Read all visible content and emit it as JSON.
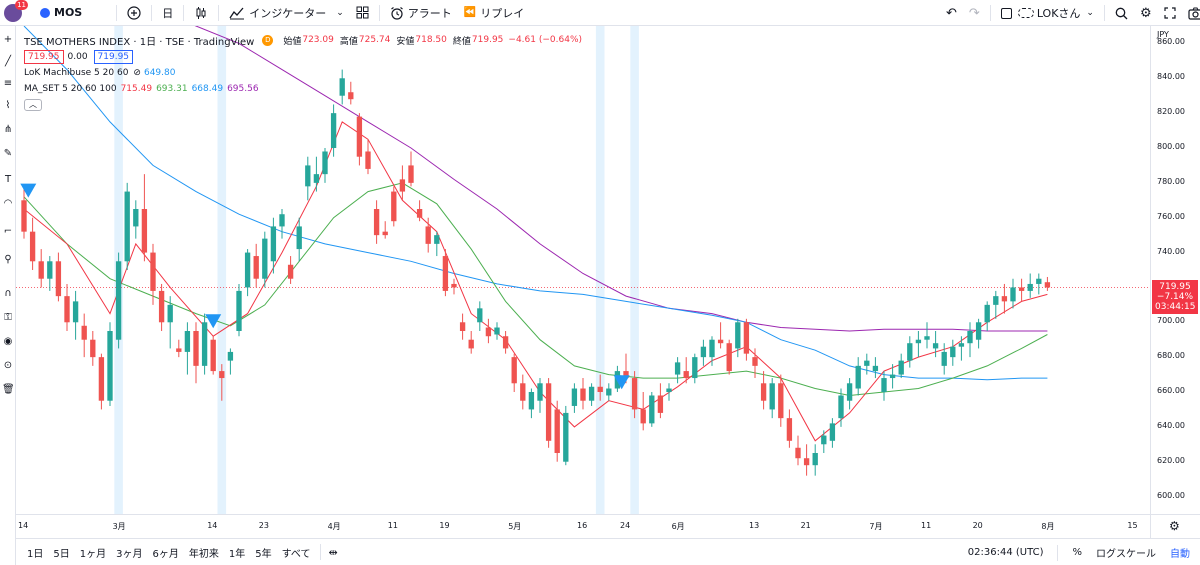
{
  "toolbar": {
    "avatar_badge": "11",
    "symbol": "MOS",
    "interval": "日",
    "indicators_label": "インジケーター",
    "alert_label": "アラート",
    "replay_label": "リプレイ",
    "layout_name": "LOKさん"
  },
  "legend": {
    "title": "TSE MOTHERS INDEX · 1日 · TSE · TradingView",
    "badge": "D",
    "open_label": "始値",
    "open": "723.09",
    "high_label": "高値",
    "high": "725.74",
    "low_label": "安値",
    "low": "718.50",
    "close_label": "終値",
    "close": "719.95",
    "change": "−4.61 (−0.64%)",
    "bid": "719.95",
    "spread": "0.00",
    "ask": "719.95",
    "indicator1_name": "LoK Machibuse 5 20 60",
    "indicator1_val": "649.80",
    "indicator2_name": "MA_SET 5 20 60 100",
    "ma5": "715.49",
    "ma20": "693.31",
    "ma60": "668.49",
    "ma100": "695.56"
  },
  "price_axis": {
    "currency": "JPY",
    "ticks": [
      "860.00",
      "840.00",
      "820.00",
      "800.00",
      "780.00",
      "760.00",
      "740.00",
      "720.00",
      "700.00",
      "680.00",
      "660.00",
      "640.00",
      "620.00",
      "600.00"
    ],
    "current_price": "719.95",
    "current_change": "−7.14%",
    "countdown": "03:44:15"
  },
  "time_axis": {
    "labels": [
      {
        "t": 0,
        "text": "14"
      },
      {
        "t": 11,
        "text": "3月"
      },
      {
        "t": 22,
        "text": "14"
      },
      {
        "t": 28,
        "text": "23"
      },
      {
        "t": 36,
        "text": "4月"
      },
      {
        "t": 43,
        "text": "11"
      },
      {
        "t": 49,
        "text": "19"
      },
      {
        "t": 57,
        "text": "5月"
      },
      {
        "t": 65,
        "text": "16"
      },
      {
        "t": 70,
        "text": "24"
      },
      {
        "t": 76,
        "text": "6月"
      },
      {
        "t": 85,
        "text": "13"
      },
      {
        "t": 91,
        "text": "21"
      },
      {
        "t": 99,
        "text": "7月"
      },
      {
        "t": 105,
        "text": "11"
      },
      {
        "t": 111,
        "text": "20"
      },
      {
        "t": 119,
        "text": "8月"
      },
      {
        "t": 129,
        "text": "15"
      }
    ]
  },
  "bottom_bar": {
    "ranges": [
      "1日",
      "5日",
      "1ヶ月",
      "3ヶ月",
      "6ヶ月",
      "年初来",
      "1年",
      "5年",
      "すべて"
    ],
    "clock": "02:36:44 (UTC)",
    "percent": "%",
    "log_scale": "ログスケール",
    "auto": "自動"
  },
  "colors": {
    "up": "#26a69a",
    "down": "#ef5350",
    "ma5": "#f23645",
    "ma20": "#4caf50",
    "ma60": "#2196f3",
    "ma100": "#9c27b0",
    "highlight": "#e3f2fd",
    "marker": "#2196f3"
  },
  "chart_data": {
    "type": "candlestick",
    "ylim": [
      590,
      870
    ],
    "xlim": [
      0,
      130
    ],
    "candles": [
      [
        0,
        770,
        778,
        748,
        752
      ],
      [
        1,
        752,
        760,
        730,
        735
      ],
      [
        2,
        735,
        742,
        720,
        725
      ],
      [
        3,
        725,
        738,
        718,
        735
      ],
      [
        4,
        735,
        740,
        712,
        715
      ],
      [
        5,
        715,
        722,
        695,
        700
      ],
      [
        6,
        700,
        718,
        690,
        712
      ],
      [
        7,
        698,
        705,
        680,
        690
      ],
      [
        8,
        690,
        695,
        675,
        680
      ],
      [
        9,
        680,
        682,
        650,
        655
      ],
      [
        10,
        655,
        700,
        652,
        695
      ],
      [
        11,
        690,
        740,
        685,
        735
      ],
      [
        12,
        735,
        780,
        730,
        775
      ],
      [
        13,
        755,
        770,
        748,
        765
      ],
      [
        14,
        765,
        785,
        735,
        740
      ],
      [
        15,
        740,
        745,
        710,
        718
      ],
      [
        16,
        718,
        722,
        695,
        700
      ],
      [
        17,
        700,
        715,
        685,
        710
      ],
      [
        18,
        685,
        690,
        680,
        683
      ],
      [
        19,
        683,
        700,
        670,
        695
      ],
      [
        20,
        695,
        700,
        665,
        675
      ],
      [
        21,
        675,
        705,
        670,
        700
      ],
      [
        22,
        690,
        692,
        670,
        672
      ],
      [
        23,
        672,
        676,
        655,
        668
      ],
      [
        24,
        678,
        685,
        670,
        683
      ],
      [
        25,
        695,
        722,
        692,
        718
      ],
      [
        26,
        720,
        742,
        715,
        740
      ],
      [
        27,
        738,
        745,
        720,
        725
      ],
      [
        28,
        725,
        752,
        720,
        748
      ],
      [
        29,
        735,
        760,
        728,
        755
      ],
      [
        30,
        755,
        765,
        748,
        762
      ],
      [
        31,
        733,
        738,
        722,
        725
      ],
      [
        32,
        742,
        760,
        735,
        755
      ],
      [
        33,
        778,
        795,
        770,
        790
      ],
      [
        34,
        780,
        795,
        775,
        785
      ],
      [
        35,
        785,
        800,
        780,
        798
      ],
      [
        36,
        800,
        825,
        795,
        820
      ],
      [
        37,
        830,
        845,
        825,
        840
      ],
      [
        38,
        832,
        838,
        825,
        828
      ],
      [
        39,
        818,
        820,
        790,
        795
      ],
      [
        40,
        798,
        805,
        785,
        788
      ],
      [
        41,
        765,
        770,
        745,
        750
      ],
      [
        42,
        752,
        758,
        748,
        750
      ],
      [
        43,
        775,
        778,
        755,
        758
      ],
      [
        44,
        782,
        790,
        770,
        775
      ],
      [
        45,
        790,
        798,
        778,
        780
      ],
      [
        46,
        765,
        770,
        758,
        760
      ],
      [
        47,
        755,
        760,
        740,
        745
      ],
      [
        48,
        745,
        752,
        738,
        750
      ],
      [
        49,
        738,
        742,
        715,
        718
      ],
      [
        50,
        722,
        725,
        716,
        720
      ],
      [
        51,
        700,
        705,
        690,
        695
      ],
      [
        52,
        690,
        695,
        682,
        685
      ],
      [
        53,
        700,
        712,
        695,
        708
      ],
      [
        54,
        697,
        702,
        688,
        692
      ],
      [
        55,
        693,
        700,
        690,
        697
      ],
      [
        56,
        692,
        695,
        682,
        685
      ],
      [
        57,
        680,
        682,
        660,
        665
      ],
      [
        58,
        665,
        670,
        650,
        655
      ],
      [
        59,
        650,
        662,
        645,
        660
      ],
      [
        60,
        655,
        668,
        648,
        665
      ],
      [
        61,
        665,
        668,
        628,
        632
      ],
      [
        62,
        650,
        655,
        620,
        625
      ],
      [
        63,
        620,
        652,
        618,
        648
      ],
      [
        64,
        652,
        665,
        648,
        662
      ],
      [
        65,
        662,
        668,
        650,
        655
      ],
      [
        66,
        655,
        665,
        652,
        663
      ],
      [
        67,
        663,
        670,
        655,
        660
      ],
      [
        68,
        658,
        665,
        655,
        662
      ],
      [
        69,
        662,
        675,
        660,
        672
      ],
      [
        70,
        672,
        682,
        665,
        668
      ],
      [
        71,
        668,
        672,
        645,
        650
      ],
      [
        72,
        650,
        660,
        638,
        642
      ],
      [
        73,
        642,
        660,
        640,
        658
      ],
      [
        74,
        658,
        665,
        645,
        648
      ],
      [
        75,
        660,
        665,
        655,
        662
      ],
      [
        76,
        670,
        680,
        665,
        677
      ],
      [
        77,
        672,
        680,
        665,
        668
      ],
      [
        78,
        668,
        682,
        665,
        680
      ],
      [
        79,
        680,
        690,
        675,
        686
      ],
      [
        80,
        680,
        692,
        675,
        690
      ],
      [
        81,
        690,
        700,
        685,
        688
      ],
      [
        82,
        688,
        690,
        670,
        672
      ],
      [
        83,
        685,
        702,
        680,
        700
      ],
      [
        84,
        700,
        702,
        678,
        682
      ],
      [
        85,
        680,
        685,
        668,
        675
      ],
      [
        86,
        665,
        672,
        650,
        655
      ],
      [
        87,
        650,
        668,
        645,
        665
      ],
      [
        88,
        665,
        670,
        640,
        645
      ],
      [
        89,
        645,
        650,
        628,
        632
      ],
      [
        90,
        628,
        635,
        618,
        622
      ],
      [
        91,
        622,
        630,
        612,
        618
      ],
      [
        92,
        618,
        630,
        612,
        625
      ],
      [
        93,
        630,
        638,
        625,
        635
      ],
      [
        94,
        632,
        645,
        628,
        642
      ],
      [
        95,
        645,
        662,
        640,
        658
      ],
      [
        96,
        655,
        668,
        650,
        665
      ],
      [
        97,
        662,
        680,
        658,
        675
      ],
      [
        98,
        675,
        682,
        670,
        678
      ],
      [
        99,
        672,
        680,
        668,
        675
      ],
      [
        100,
        660,
        672,
        655,
        668
      ],
      [
        101,
        668,
        676,
        662,
        670
      ],
      [
        102,
        670,
        682,
        668,
        678
      ],
      [
        103,
        678,
        692,
        674,
        688
      ],
      [
        104,
        688,
        695,
        680,
        690
      ],
      [
        105,
        690,
        700,
        685,
        692
      ],
      [
        106,
        685,
        695,
        680,
        688
      ],
      [
        107,
        675,
        688,
        670,
        683
      ],
      [
        108,
        680,
        690,
        675,
        686
      ],
      [
        109,
        686,
        692,
        678,
        688
      ],
      [
        110,
        688,
        700,
        680,
        695
      ],
      [
        111,
        690,
        702,
        685,
        700
      ],
      [
        112,
        700,
        712,
        695,
        710
      ],
      [
        113,
        710,
        718,
        702,
        715
      ],
      [
        114,
        715,
        722,
        705,
        712
      ],
      [
        115,
        712,
        725,
        708,
        720
      ],
      [
        116,
        720,
        725,
        712,
        718
      ],
      [
        117,
        718,
        728,
        714,
        722
      ],
      [
        118,
        722,
        728,
        716,
        725
      ],
      [
        119,
        723,
        726,
        718,
        720
      ]
    ],
    "ma5": [
      [
        0,
        765
      ],
      [
        5,
        745
      ],
      [
        10,
        705
      ],
      [
        13,
        745
      ],
      [
        17,
        720
      ],
      [
        22,
        692
      ],
      [
        26,
        705
      ],
      [
        30,
        740
      ],
      [
        34,
        778
      ],
      [
        37,
        815
      ],
      [
        40,
        805
      ],
      [
        44,
        770
      ],
      [
        48,
        752
      ],
      [
        52,
        705
      ],
      [
        56,
        690
      ],
      [
        60,
        660
      ],
      [
        64,
        640
      ],
      [
        68,
        655
      ],
      [
        72,
        650
      ],
      [
        76,
        663
      ],
      [
        80,
        678
      ],
      [
        84,
        686
      ],
      [
        88,
        668
      ],
      [
        92,
        632
      ],
      [
        96,
        648
      ],
      [
        100,
        672
      ],
      [
        104,
        680
      ],
      [
        108,
        686
      ],
      [
        112,
        700
      ],
      [
        116,
        712
      ],
      [
        119,
        716
      ]
    ],
    "ma20": [
      [
        0,
        772
      ],
      [
        5,
        745
      ],
      [
        10,
        725
      ],
      [
        15,
        715
      ],
      [
        20,
        705
      ],
      [
        24,
        698
      ],
      [
        28,
        710
      ],
      [
        32,
        735
      ],
      [
        36,
        760
      ],
      [
        40,
        775
      ],
      [
        44,
        780
      ],
      [
        48,
        768
      ],
      [
        52,
        742
      ],
      [
        56,
        712
      ],
      [
        60,
        690
      ],
      [
        64,
        675
      ],
      [
        68,
        670
      ],
      [
        72,
        668
      ],
      [
        76,
        668
      ],
      [
        80,
        670
      ],
      [
        84,
        672
      ],
      [
        88,
        668
      ],
      [
        92,
        662
      ],
      [
        96,
        658
      ],
      [
        100,
        660
      ],
      [
        104,
        662
      ],
      [
        108,
        668
      ],
      [
        112,
        675
      ],
      [
        116,
        685
      ],
      [
        119,
        693
      ]
    ],
    "ma60": [
      [
        0,
        870
      ],
      [
        5,
        845
      ],
      [
        10,
        815
      ],
      [
        15,
        790
      ],
      [
        20,
        775
      ],
      [
        25,
        762
      ],
      [
        30,
        752
      ],
      [
        35,
        745
      ],
      [
        40,
        740
      ],
      [
        45,
        735
      ],
      [
        50,
        728
      ],
      [
        55,
        722
      ],
      [
        60,
        718
      ],
      [
        65,
        716
      ],
      [
        70,
        712
      ],
      [
        75,
        708
      ],
      [
        80,
        704
      ],
      [
        84,
        700
      ],
      [
        88,
        690
      ],
      [
        92,
        684
      ],
      [
        96,
        675
      ],
      [
        100,
        670
      ],
      [
        104,
        668
      ],
      [
        108,
        668
      ],
      [
        112,
        667
      ],
      [
        116,
        668
      ],
      [
        119,
        668
      ]
    ],
    "ma100": [
      [
        15,
        880
      ],
      [
        20,
        870
      ],
      [
        25,
        860
      ],
      [
        30,
        845
      ],
      [
        35,
        830
      ],
      [
        40,
        815
      ],
      [
        45,
        800
      ],
      [
        50,
        782
      ],
      [
        55,
        765
      ],
      [
        60,
        745
      ],
      [
        65,
        728
      ],
      [
        70,
        715
      ],
      [
        75,
        708
      ],
      [
        80,
        705
      ],
      [
        84,
        700
      ],
      [
        88,
        697
      ],
      [
        92,
        696
      ],
      [
        96,
        695
      ],
      [
        100,
        696
      ],
      [
        104,
        696
      ],
      [
        108,
        696
      ],
      [
        112,
        695
      ],
      [
        116,
        695
      ],
      [
        119,
        695
      ]
    ],
    "highlights": [
      11,
      23,
      67,
      71
    ],
    "markers": [
      [
        0.5,
        775
      ],
      [
        22,
        700
      ],
      [
        69.5,
        665
      ]
    ],
    "current_price": 719.95
  }
}
